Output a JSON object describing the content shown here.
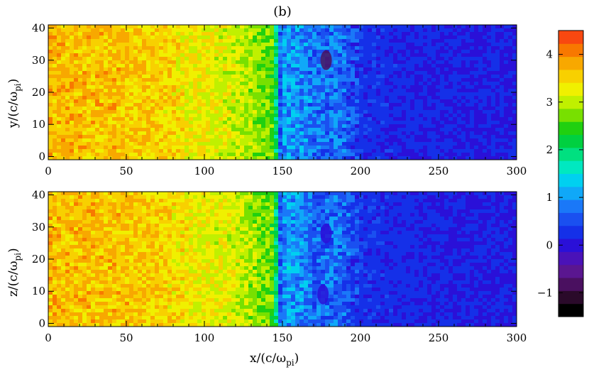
{
  "chart_data": {
    "type": "heatmap",
    "title": "(b)",
    "x_range": [
      0,
      300
    ],
    "x_ticks": [
      "0",
      "50",
      "100",
      "150",
      "200",
      "250",
      "300"
    ],
    "y_ticks": [
      "0",
      "10",
      "20",
      "30",
      "40"
    ],
    "panels": [
      {
        "name": "top",
        "ylabel": "y/(c/ω",
        "ylabel_sub": "pi",
        "ylabel_tail": ")",
        "y_range": [
          -1,
          41
        ],
        "profile": {
          "x": [
            0,
            60,
            120,
            145,
            148,
            152,
            160,
            175,
            185,
            200,
            240,
            300
          ],
          "value": [
            3.7,
            3.6,
            3.1,
            2.6,
            0.6,
            1.1,
            0.95,
            0.65,
            0.8,
            0.3,
            0.15,
            0.1
          ]
        },
        "features": [
          {
            "type": "low-spot",
            "x": 178,
            "y": 30,
            "value": -0.7
          }
        ]
      },
      {
        "name": "bottom",
        "ylabel": "z/(c/ω",
        "ylabel_sub": "pi",
        "ylabel_tail": ")",
        "y_range": [
          -1,
          41
        ],
        "profile": {
          "x": [
            0,
            60,
            120,
            145,
            148,
            152,
            160,
            175,
            185,
            200,
            240,
            300
          ],
          "value": [
            3.7,
            3.6,
            3.1,
            2.6,
            0.6,
            1.1,
            0.95,
            0.65,
            0.8,
            0.3,
            0.15,
            0.1
          ]
        },
        "features": [
          {
            "type": "low-spot",
            "x": 176,
            "y": 9,
            "value": 0.0
          },
          {
            "type": "low-spot",
            "x": 178,
            "y": 28,
            "value": 0.1
          }
        ]
      }
    ],
    "xlabel": "x/(c/ω",
    "xlabel_sub": "pi",
    "xlabel_tail": ")",
    "colorbar": {
      "range": [
        -1.5,
        4.5
      ],
      "ticks": [
        "−1",
        "0",
        "1",
        "2",
        "3",
        "4"
      ],
      "tick_values": [
        -1,
        0,
        1,
        2,
        3,
        4
      ],
      "colors": [
        "#000000",
        "#2a0a2a",
        "#4a1060",
        "#5a1690",
        "#4a12b8",
        "#2a10d8",
        "#1530e8",
        "#1a50f0",
        "#1a78f8",
        "#10a8f8",
        "#00d0f0",
        "#00e8c0",
        "#00e080",
        "#00d040",
        "#20d010",
        "#78e000",
        "#c0f000",
        "#f0f000",
        "#f8d000",
        "#f8a800",
        "#f87800",
        "#f84810"
      ]
    }
  }
}
